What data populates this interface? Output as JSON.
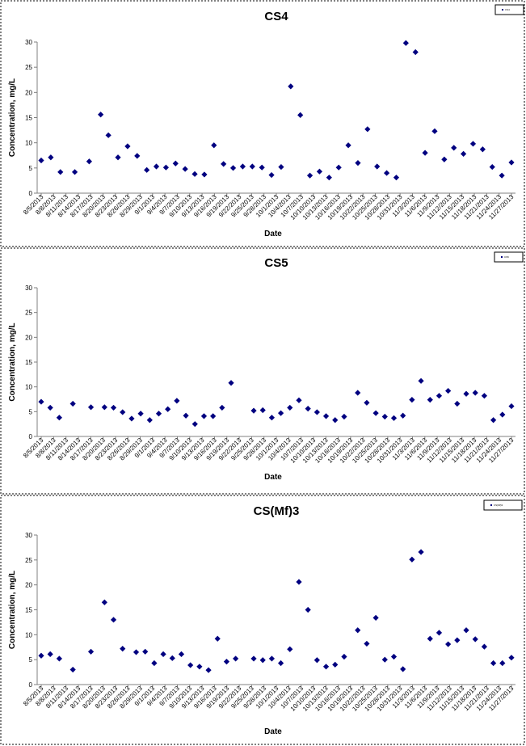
{
  "colors": {
    "marker": "#000080",
    "axis": "#808080",
    "frame": "#000000"
  },
  "chart_data": [
    {
      "type": "scatter",
      "title": "CS4",
      "xlabel": "Date",
      "ylabel": "Concentration, mg/L",
      "ylim": [
        0,
        30
      ],
      "yticks": [
        0,
        5,
        10,
        15,
        20,
        25,
        30
      ],
      "grid": false,
      "legend": {
        "placement": "top-right",
        "entries": [
          "CS4"
        ]
      },
      "categories": [
        "8/5/2013",
        "8/8/2013",
        "8/11/2013",
        "8/14/2013",
        "8/17/2013",
        "8/20/2013",
        "8/23/2013",
        "8/26/2013",
        "8/29/2013",
        "9/1/2013",
        "9/4/2013",
        "9/7/2013",
        "9/10/2013",
        "9/13/2013",
        "9/16/2013",
        "9/19/2013",
        "9/22/2013",
        "9/25/2013",
        "9/28/2013",
        "10/1/2013",
        "10/4/2013",
        "10/7/2013",
        "10/10/2013",
        "10/13/2013",
        "10/16/2013",
        "10/19/2013",
        "10/22/2013",
        "10/25/2013",
        "10/28/2013",
        "10/31/2013",
        "11/3/2013",
        "11/6/2013",
        "11/9/2013",
        "11/12/2013",
        "11/15/2013",
        "11/18/2013",
        "11/21/2013",
        "11/24/2013",
        "11/27/2013"
      ],
      "points": [
        {
          "x": 0,
          "y": 6.5
        },
        {
          "x": 1,
          "y": 7.1
        },
        {
          "x": 2,
          "y": 4.2
        },
        {
          "x": 3.5,
          "y": 4.2
        },
        {
          "x": 5,
          "y": 6.3
        },
        {
          "x": 6.2,
          "y": 15.6
        },
        {
          "x": 7,
          "y": 11.5
        },
        {
          "x": 8,
          "y": 7.1
        },
        {
          "x": 9,
          "y": 9.3
        },
        {
          "x": 10,
          "y": 7.4
        },
        {
          "x": 11,
          "y": 4.6
        },
        {
          "x": 12,
          "y": 5.3
        },
        {
          "x": 13,
          "y": 5.1
        },
        {
          "x": 14,
          "y": 5.9
        },
        {
          "x": 15,
          "y": 4.8
        },
        {
          "x": 16,
          "y": 3.8
        },
        {
          "x": 17,
          "y": 3.7
        },
        {
          "x": 18,
          "y": 9.5
        },
        {
          "x": 19,
          "y": 5.8
        },
        {
          "x": 20,
          "y": 5.0
        },
        {
          "x": 21,
          "y": 5.3
        },
        {
          "x": 22,
          "y": 5.3
        },
        {
          "x": 23,
          "y": 5.1
        },
        {
          "x": 24,
          "y": 3.6
        },
        {
          "x": 25,
          "y": 5.2
        },
        {
          "x": 26,
          "y": 21.2
        },
        {
          "x": 27,
          "y": 15.5
        },
        {
          "x": 28,
          "y": 3.5
        },
        {
          "x": 29,
          "y": 4.3
        },
        {
          "x": 30,
          "y": 3.1
        },
        {
          "x": 31,
          "y": 5.1
        },
        {
          "x": 32,
          "y": 9.5
        },
        {
          "x": 33,
          "y": 6.0
        },
        {
          "x": 34,
          "y": 12.7
        },
        {
          "x": 35,
          "y": 5.3
        },
        {
          "x": 36,
          "y": 4.0
        },
        {
          "x": 37,
          "y": 3.1
        },
        {
          "x": 38,
          "y": 29.8
        },
        {
          "x": 39,
          "y": 28.0
        },
        {
          "x": 40,
          "y": 8.0
        },
        {
          "x": 41,
          "y": 12.3
        },
        {
          "x": 42,
          "y": 6.7
        },
        {
          "x": 43,
          "y": 9.0
        },
        {
          "x": 44,
          "y": 7.8
        },
        {
          "x": 45,
          "y": 9.8
        },
        {
          "x": 46,
          "y": 8.7
        },
        {
          "x": 47,
          "y": 5.2
        },
        {
          "x": 48,
          "y": 3.5
        },
        {
          "x": 49,
          "y": 6.1
        }
      ]
    },
    {
      "type": "scatter",
      "title": "CS5",
      "xlabel": "Date",
      "ylabel": "Concentration, mg/L",
      "ylim": [
        0,
        30
      ],
      "yticks": [
        0,
        5,
        10,
        15,
        20,
        25,
        30
      ],
      "grid": false,
      "legend": {
        "placement": "top-right",
        "entries": [
          "CS5"
        ]
      },
      "categories": [
        "8/5/2013",
        "8/8/2013",
        "8/11/2013",
        "8/14/2013",
        "8/17/2013",
        "8/20/2013",
        "8/23/2013",
        "8/26/2013",
        "8/29/2013",
        "9/1/2013",
        "9/4/2013",
        "9/7/2013",
        "9/10/2013",
        "9/13/2013",
        "9/16/2013",
        "9/19/2013",
        "9/22/2013",
        "9/25/2013",
        "9/28/2013",
        "10/1/2013",
        "10/4/2013",
        "10/7/2013",
        "10/10/2013",
        "10/13/2013",
        "10/16/2013",
        "10/19/2013",
        "10/22/2013",
        "10/25/2013",
        "10/28/2013",
        "10/31/2013",
        "11/3/2013",
        "11/6/2013",
        "11/9/2013",
        "11/12/2013",
        "11/15/2013",
        "11/18/2013",
        "11/21/2013",
        "11/24/2013",
        "11/27/2013"
      ],
      "points": [
        {
          "x": 0,
          "y": 7.0
        },
        {
          "x": 1,
          "y": 5.8
        },
        {
          "x": 2,
          "y": 3.8
        },
        {
          "x": 3.5,
          "y": 6.6
        },
        {
          "x": 5.5,
          "y": 5.9
        },
        {
          "x": 7,
          "y": 5.9
        },
        {
          "x": 8,
          "y": 5.8
        },
        {
          "x": 9,
          "y": 4.9
        },
        {
          "x": 10,
          "y": 3.6
        },
        {
          "x": 11,
          "y": 4.6
        },
        {
          "x": 12,
          "y": 3.3
        },
        {
          "x": 13,
          "y": 4.6
        },
        {
          "x": 14,
          "y": 5.5
        },
        {
          "x": 15,
          "y": 7.2
        },
        {
          "x": 16,
          "y": 4.2
        },
        {
          "x": 17,
          "y": 2.5
        },
        {
          "x": 18,
          "y": 4.1
        },
        {
          "x": 19,
          "y": 4.1
        },
        {
          "x": 20,
          "y": 5.8
        },
        {
          "x": 21,
          "y": 10.8
        },
        {
          "x": 23.5,
          "y": 5.2
        },
        {
          "x": 24.5,
          "y": 5.3
        },
        {
          "x": 25.5,
          "y": 3.8
        },
        {
          "x": 26.5,
          "y": 4.7
        },
        {
          "x": 27.5,
          "y": 5.8
        },
        {
          "x": 28.5,
          "y": 7.3
        },
        {
          "x": 29.5,
          "y": 5.6
        },
        {
          "x": 30.5,
          "y": 4.9
        },
        {
          "x": 31.5,
          "y": 4.1
        },
        {
          "x": 32.5,
          "y": 3.3
        },
        {
          "x": 33.5,
          "y": 4.0
        },
        {
          "x": 35,
          "y": 8.8
        },
        {
          "x": 36,
          "y": 6.8
        },
        {
          "x": 37,
          "y": 4.7
        },
        {
          "x": 38,
          "y": 4.0
        },
        {
          "x": 39,
          "y": 3.7
        },
        {
          "x": 40,
          "y": 4.2
        },
        {
          "x": 41,
          "y": 7.4
        },
        {
          "x": 42,
          "y": 11.2
        },
        {
          "x": 43,
          "y": 7.4
        },
        {
          "x": 44,
          "y": 8.2
        },
        {
          "x": 45,
          "y": 9.2
        },
        {
          "x": 46,
          "y": 6.6
        },
        {
          "x": 47,
          "y": 8.6
        },
        {
          "x": 48,
          "y": 8.8
        },
        {
          "x": 49,
          "y": 8.2
        },
        {
          "x": 50,
          "y": 3.3
        },
        {
          "x": 51,
          "y": 4.4
        },
        {
          "x": 52,
          "y": 6.1
        }
      ]
    },
    {
      "type": "scatter",
      "title": "CS(Mf)3",
      "xlabel": "Date",
      "ylabel": "Concentration, mg/L",
      "ylim": [
        0,
        30
      ],
      "yticks": [
        0,
        5,
        10,
        15,
        20,
        25,
        30
      ],
      "grid": false,
      "legend": {
        "placement": "top-right",
        "entries": [
          "CS(Mf)3"
        ]
      },
      "categories": [
        "8/5/2013",
        "8/8/2013",
        "8/11/2013",
        "8/14/2013",
        "8/17/2013",
        "8/20/2013",
        "8/23/2013",
        "8/26/2013",
        "8/29/2013",
        "9/1/2013",
        "9/4/2013",
        "9/7/2013",
        "9/10/2013",
        "9/13/2013",
        "9/16/2013",
        "9/19/2013",
        "9/22/2013",
        "9/25/2013",
        "9/28/2013",
        "10/1/2013",
        "10/4/2013",
        "10/7/2013",
        "10/10/2013",
        "10/13/2013",
        "10/16/2013",
        "10/19/2013",
        "10/22/2013",
        "10/25/2013",
        "10/28/2013",
        "10/31/2013",
        "11/3/2013",
        "11/6/2013",
        "11/9/2013",
        "11/12/2013",
        "11/15/2013",
        "11/18/2013",
        "11/21/2013",
        "11/24/2013",
        "11/27/2013"
      ],
      "points": [
        {
          "x": 0,
          "y": 5.8
        },
        {
          "x": 1,
          "y": 6.1
        },
        {
          "x": 2,
          "y": 5.2
        },
        {
          "x": 3.5,
          "y": 3.0
        },
        {
          "x": 5.5,
          "y": 6.6
        },
        {
          "x": 7,
          "y": 16.5
        },
        {
          "x": 8,
          "y": 13.0
        },
        {
          "x": 9,
          "y": 7.2
        },
        {
          "x": 10.5,
          "y": 6.5
        },
        {
          "x": 11.5,
          "y": 6.6
        },
        {
          "x": 12.5,
          "y": 4.3
        },
        {
          "x": 13.5,
          "y": 6.1
        },
        {
          "x": 14.5,
          "y": 5.3
        },
        {
          "x": 15.5,
          "y": 6.1
        },
        {
          "x": 16.5,
          "y": 3.9
        },
        {
          "x": 17.5,
          "y": 3.6
        },
        {
          "x": 18.5,
          "y": 2.9
        },
        {
          "x": 19.5,
          "y": 9.2
        },
        {
          "x": 20.5,
          "y": 4.6
        },
        {
          "x": 21.5,
          "y": 5.2
        },
        {
          "x": 23.5,
          "y": 5.2
        },
        {
          "x": 24.5,
          "y": 4.9
        },
        {
          "x": 25.5,
          "y": 5.2
        },
        {
          "x": 26.5,
          "y": 4.3
        },
        {
          "x": 27.5,
          "y": 7.1
        },
        {
          "x": 28.5,
          "y": 20.6
        },
        {
          "x": 29.5,
          "y": 15.0
        },
        {
          "x": 30.5,
          "y": 4.9
        },
        {
          "x": 31.5,
          "y": 3.6
        },
        {
          "x": 32.5,
          "y": 4.0
        },
        {
          "x": 33.5,
          "y": 5.6
        },
        {
          "x": 35,
          "y": 10.9
        },
        {
          "x": 36,
          "y": 8.2
        },
        {
          "x": 37,
          "y": 13.4
        },
        {
          "x": 38,
          "y": 5.0
        },
        {
          "x": 39,
          "y": 5.6
        },
        {
          "x": 40,
          "y": 3.1
        },
        {
          "x": 41,
          "y": 25.1
        },
        {
          "x": 42,
          "y": 26.6
        },
        {
          "x": 43,
          "y": 9.2
        },
        {
          "x": 44,
          "y": 10.4
        },
        {
          "x": 45,
          "y": 8.1
        },
        {
          "x": 46,
          "y": 8.9
        },
        {
          "x": 47,
          "y": 10.9
        },
        {
          "x": 48,
          "y": 9.1
        },
        {
          "x": 49,
          "y": 7.6
        },
        {
          "x": 50,
          "y": 4.3
        },
        {
          "x": 51,
          "y": 4.3
        },
        {
          "x": 52,
          "y": 5.4
        }
      ]
    }
  ]
}
